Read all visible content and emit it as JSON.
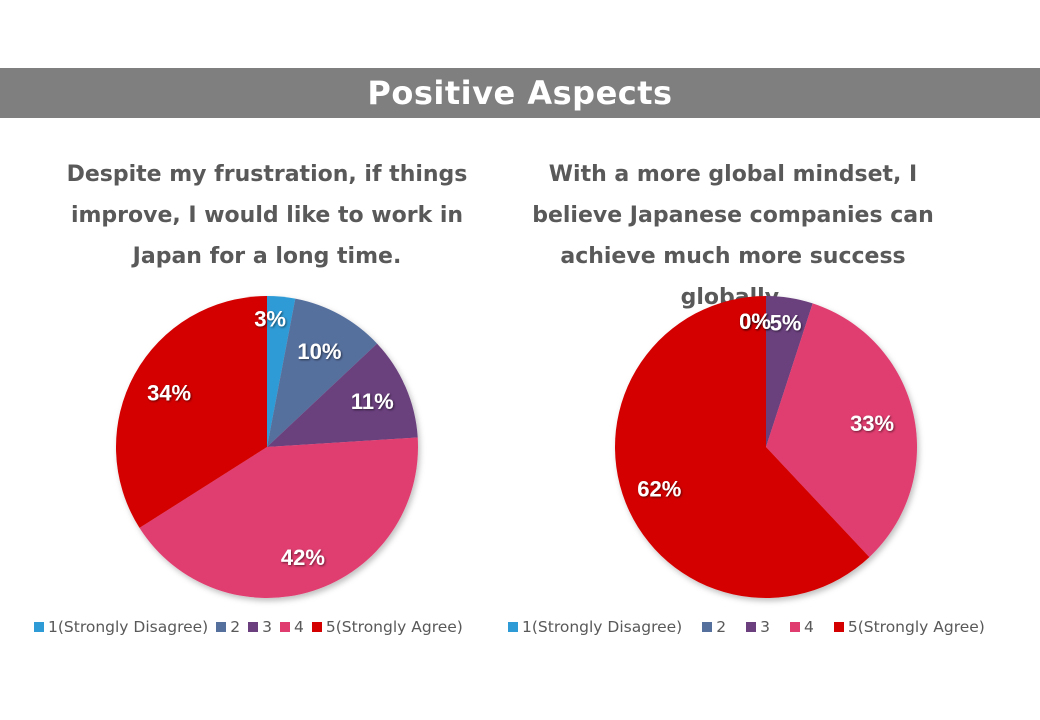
{
  "banner": {
    "title": "Positive Aspects"
  },
  "chart_data": [
    {
      "type": "pie",
      "title": "Despite my frustration, if things improve, I would like to work in Japan for a long time.",
      "categories": [
        "1(Strongly Disagree)",
        "2",
        "3",
        "4",
        "5(Strongly Agree)"
      ],
      "values": [
        3,
        10,
        11,
        42,
        34
      ],
      "labels": [
        "3%",
        "10%",
        "11%",
        "42%",
        "34%"
      ],
      "colors": [
        "#2e9bd6",
        "#56709e",
        "#6b3f7d",
        "#e03c70",
        "#d40000"
      ],
      "legend_position": "bottom"
    },
    {
      "type": "pie",
      "title": "With a more global mindset, I believe Japanese companies can achieve much more success globally.",
      "categories": [
        "1(Strongly Disagree)",
        "2",
        "3",
        "4",
        "5(Strongly Agree)"
      ],
      "values": [
        0,
        0,
        5,
        33,
        62
      ],
      "labels": [
        "0%",
        "0%",
        "5%",
        "33%",
        "62%"
      ],
      "colors": [
        "#2e9bd6",
        "#56709e",
        "#6b3f7d",
        "#e03c70",
        "#d40000"
      ],
      "legend_position": "bottom"
    }
  ]
}
